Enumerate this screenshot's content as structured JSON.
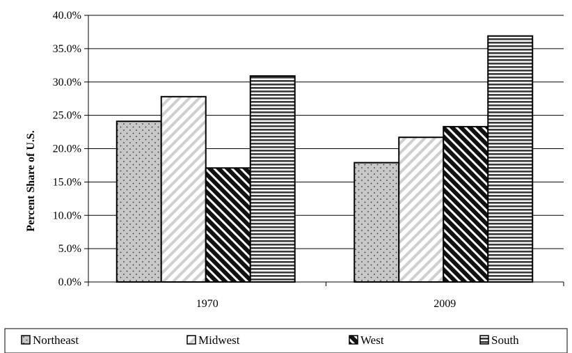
{
  "chart_data": {
    "type": "bar",
    "title": "",
    "xlabel": "",
    "ylabel": "Percent Share of U.S.",
    "categories": [
      "1970",
      "2009"
    ],
    "ylim": [
      0,
      40
    ],
    "yticks": [
      "0.0%",
      "5.0%",
      "10.0%",
      "15.0%",
      "20.0%",
      "25.0%",
      "30.0%",
      "35.0%",
      "40.0%"
    ],
    "grid": true,
    "legend_position": "bottom",
    "series": [
      {
        "name": "Northeast",
        "values": [
          24.1,
          17.9
        ],
        "pattern": "dots",
        "color": "#c8c8c8"
      },
      {
        "name": "Midwest",
        "values": [
          27.8,
          21.7
        ],
        "pattern": "light-diagonal",
        "color": "#ffffff"
      },
      {
        "name": "West",
        "values": [
          17.1,
          23.3
        ],
        "pattern": "dark-diagonal",
        "color": "#111111"
      },
      {
        "name": "South",
        "values": [
          30.9,
          36.9
        ],
        "pattern": "horizontal",
        "color": "#555555"
      }
    ]
  }
}
